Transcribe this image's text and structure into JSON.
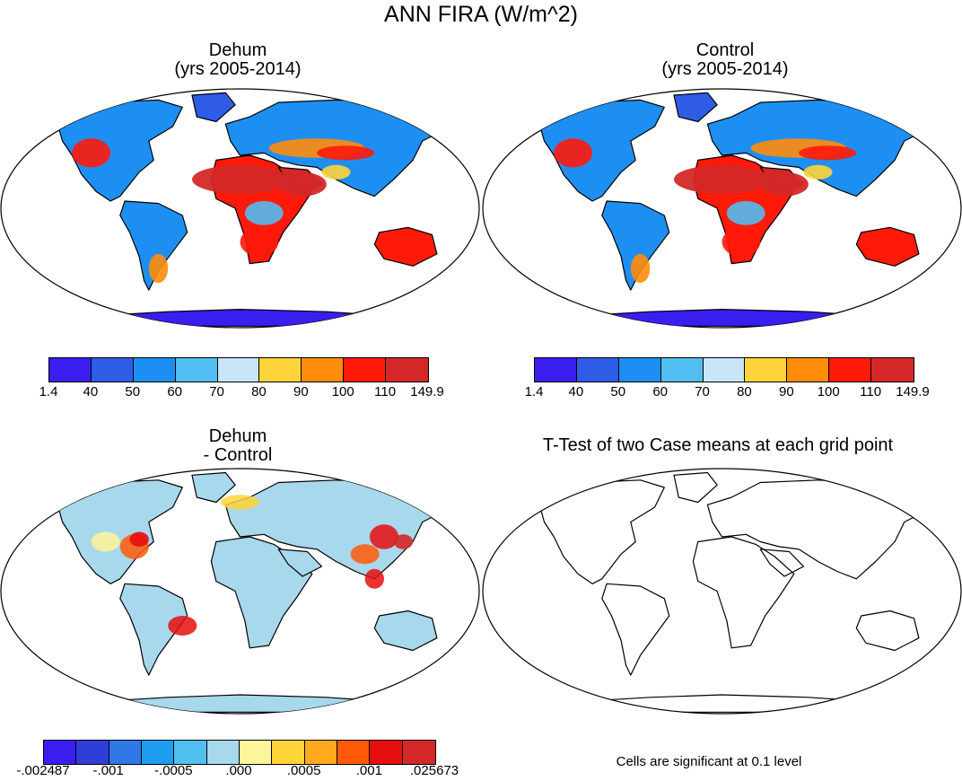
{
  "figure": {
    "title": "ANN FIRA (W/m^2)",
    "panels": [
      {
        "id": "dehum",
        "title_line1": "Dehum",
        "title_line2": "(yrs 2005-2014)"
      },
      {
        "id": "control",
        "title_line1": "Control",
        "title_line2": "(yrs 2005-2014)"
      },
      {
        "id": "diff",
        "title_line1": "Dehum",
        "title_line2": "- Control"
      },
      {
        "id": "ttest",
        "title": "T-Test of two Case means at each grid point",
        "note": "Cells are significant at 0.1 level"
      }
    ]
  },
  "chart_data": [
    {
      "type": "heatmap",
      "title": "Dehum (yrs 2005-2014)",
      "projection": "Robinson, global",
      "colorbar": {
        "labels": [
          "1.4",
          "40",
          "50",
          "60",
          "70",
          "80",
          "90",
          "100",
          "110",
          "149.9"
        ],
        "colors": [
          "#3a1ef0",
          "#2f5ce6",
          "#1e8ff2",
          "#52bdf0",
          "#c8e6f8",
          "#ffd43a",
          "#ff8c0a",
          "#ff1a0a",
          "#d42828"
        ]
      }
    },
    {
      "type": "heatmap",
      "title": "Control (yrs 2005-2014)",
      "projection": "Robinson, global",
      "colorbar": {
        "labels": [
          "1.4",
          "40",
          "50",
          "60",
          "70",
          "80",
          "90",
          "100",
          "110",
          "149.9"
        ],
        "colors": [
          "#3a1ef0",
          "#2f5ce6",
          "#1e8ff2",
          "#52bdf0",
          "#c8e6f8",
          "#ffd43a",
          "#ff8c0a",
          "#ff1a0a",
          "#d42828"
        ]
      }
    },
    {
      "type": "heatmap",
      "title": "Dehum - Control",
      "projection": "Robinson, global",
      "colorbar": {
        "labels": [
          "-.002487",
          "-.001",
          "-.0005",
          ".000",
          ".0005",
          ".001",
          ".025673"
        ],
        "colors": [
          "#3a1ef0",
          "#2f3ed8",
          "#2f78e6",
          "#1e9ef2",
          "#52c0f0",
          "#a8d8ec",
          "#fff59a",
          "#ffd43a",
          "#ffaa1e",
          "#ff5a0a",
          "#e60e0e",
          "#d42828"
        ]
      }
    },
    {
      "type": "heatmap",
      "title": "T-Test of two Case means at each grid point",
      "projection": "Robinson, global",
      "note": "Cells are significant at 0.1 level"
    }
  ]
}
